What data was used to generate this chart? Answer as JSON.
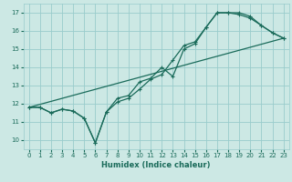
{
  "title": "",
  "xlabel": "Humidex (Indice chaleur)",
  "ylabel": "",
  "xlim": [
    -0.5,
    23.5
  ],
  "ylim": [
    9.5,
    17.5
  ],
  "yticks": [
    10,
    11,
    12,
    13,
    14,
    15,
    16,
    17
  ],
  "xticks": [
    0,
    1,
    2,
    3,
    4,
    5,
    6,
    7,
    8,
    9,
    10,
    11,
    12,
    13,
    14,
    15,
    16,
    17,
    18,
    19,
    20,
    21,
    22,
    23
  ],
  "bg_color": "#cce8e4",
  "grid_color": "#99cccc",
  "line_color": "#1a6b5a",
  "line1_x": [
    0,
    1,
    2,
    3,
    4,
    5,
    6,
    7,
    8,
    9,
    10,
    11,
    12,
    13,
    14,
    15,
    16,
    17,
    18,
    19,
    20,
    21,
    22,
    23
  ],
  "line1_y": [
    11.8,
    11.8,
    11.5,
    11.7,
    11.6,
    11.2,
    9.85,
    11.55,
    12.3,
    12.45,
    13.2,
    13.4,
    14.0,
    13.5,
    15.0,
    15.3,
    16.2,
    17.0,
    17.0,
    17.0,
    16.8,
    16.3,
    15.9,
    15.6
  ],
  "line2_x": [
    0,
    1,
    2,
    3,
    4,
    5,
    6,
    7,
    8,
    9,
    10,
    11,
    12,
    13,
    14,
    15,
    16,
    17,
    18,
    19,
    20,
    21,
    22,
    23
  ],
  "line2_y": [
    11.8,
    11.8,
    11.5,
    11.7,
    11.6,
    11.2,
    9.85,
    11.55,
    12.1,
    12.3,
    12.8,
    13.35,
    13.6,
    14.4,
    15.2,
    15.4,
    16.2,
    17.0,
    17.0,
    16.9,
    16.7,
    16.3,
    15.9,
    15.6
  ],
  "line3_x": [
    0,
    23
  ],
  "line3_y": [
    11.8,
    15.6
  ],
  "label_fontsize": 6,
  "tick_fontsize": 5
}
